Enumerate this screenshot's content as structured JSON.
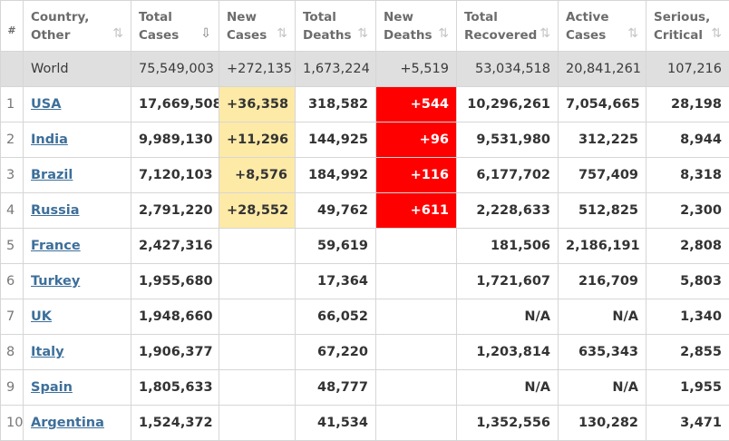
{
  "header": {
    "rank": "#",
    "country_l1": "Country,",
    "country_l2": "Other",
    "total_cases_l1": "Total",
    "total_cases_l2": "Cases",
    "new_cases_l1": "New",
    "new_cases_l2": "Cases",
    "total_deaths_l1": "Total",
    "total_deaths_l2": "Deaths",
    "new_deaths_l1": "New",
    "new_deaths_l2": "Deaths",
    "total_recovered_l1": "Total",
    "total_recovered_l2": "Recovered",
    "active_cases_l1": "Active",
    "active_cases_l2": "Cases",
    "serious_l1": "Serious,",
    "serious_l2": "Critical",
    "sort_icon": "⇅",
    "sort_active_icon": "⇩"
  },
  "world": {
    "name": "World",
    "total_cases": "75,549,003",
    "new_cases": "+272,135",
    "total_deaths": "1,673,224",
    "new_deaths": "+5,519",
    "total_recovered": "53,034,518",
    "active_cases": "20,841,261",
    "serious": "107,216"
  },
  "rows": [
    {
      "rank": "1",
      "country": "USA",
      "total_cases": "17,669,508",
      "new_cases": "+36,358",
      "total_deaths": "318,582",
      "new_deaths": "+544",
      "total_recovered": "10,296,261",
      "active_cases": "7,054,665",
      "serious": "28,198"
    },
    {
      "rank": "2",
      "country": "India",
      "total_cases": "9,989,130",
      "new_cases": "+11,296",
      "total_deaths": "144,925",
      "new_deaths": "+96",
      "total_recovered": "9,531,980",
      "active_cases": "312,225",
      "serious": "8,944"
    },
    {
      "rank": "3",
      "country": "Brazil",
      "total_cases": "7,120,103",
      "new_cases": "+8,576",
      "total_deaths": "184,992",
      "new_deaths": "+116",
      "total_recovered": "6,177,702",
      "active_cases": "757,409",
      "serious": "8,318"
    },
    {
      "rank": "4",
      "country": "Russia",
      "total_cases": "2,791,220",
      "new_cases": "+28,552",
      "total_deaths": "49,762",
      "new_deaths": "+611",
      "total_recovered": "2,228,633",
      "active_cases": "512,825",
      "serious": "2,300"
    },
    {
      "rank": "5",
      "country": "France",
      "total_cases": "2,427,316",
      "new_cases": "",
      "total_deaths": "59,619",
      "new_deaths": "",
      "total_recovered": "181,506",
      "active_cases": "2,186,191",
      "serious": "2,808"
    },
    {
      "rank": "6",
      "country": "Turkey",
      "total_cases": "1,955,680",
      "new_cases": "",
      "total_deaths": "17,364",
      "new_deaths": "",
      "total_recovered": "1,721,607",
      "active_cases": "216,709",
      "serious": "5,803"
    },
    {
      "rank": "7",
      "country": "UK",
      "total_cases": "1,948,660",
      "new_cases": "",
      "total_deaths": "66,052",
      "new_deaths": "",
      "total_recovered": "N/A",
      "active_cases": "N/A",
      "serious": "1,340"
    },
    {
      "rank": "8",
      "country": "Italy",
      "total_cases": "1,906,377",
      "new_cases": "",
      "total_deaths": "67,220",
      "new_deaths": "",
      "total_recovered": "1,203,814",
      "active_cases": "635,343",
      "serious": "2,855"
    },
    {
      "rank": "9",
      "country": "Spain",
      "total_cases": "1,805,633",
      "new_cases": "",
      "total_deaths": "48,777",
      "new_deaths": "",
      "total_recovered": "N/A",
      "active_cases": "N/A",
      "serious": "1,955"
    },
    {
      "rank": "10",
      "country": "Argentina",
      "total_cases": "1,524,372",
      "new_cases": "",
      "total_deaths": "41,534",
      "new_deaths": "",
      "total_recovered": "1,352,556",
      "active_cases": "130,282",
      "serious": "3,471"
    }
  ]
}
